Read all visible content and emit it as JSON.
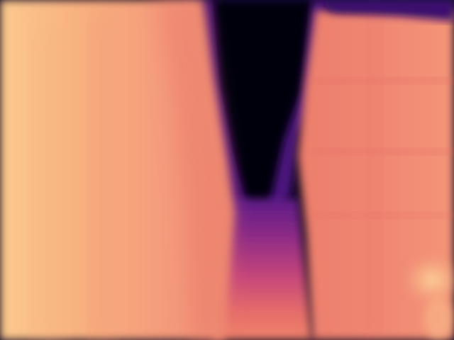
{
  "image": {
    "kind": "depth-map",
    "colormap": "magma",
    "palette": {
      "near": "#fbc98e",
      "near_mid": "#f7a07a",
      "mid": "#ef7e69",
      "mid_far": "#dd4f6a",
      "far_mid": "#9a2c84",
      "far": "#4b117b",
      "farthest": "#050310"
    }
  }
}
